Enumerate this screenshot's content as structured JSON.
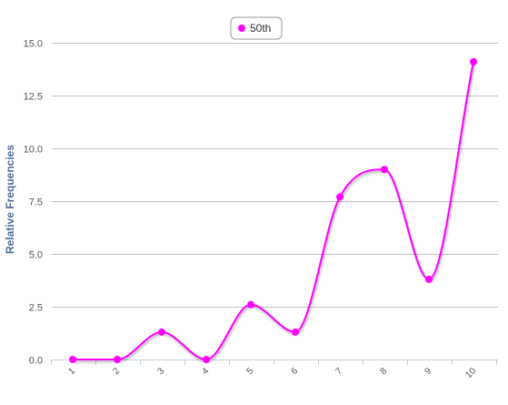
{
  "chart_data": {
    "type": "line",
    "smooth": true,
    "categories": [
      "1",
      "2",
      "3",
      "4",
      "5",
      "6",
      "7",
      "8",
      "9",
      "10"
    ],
    "series": [
      {
        "name": "50th",
        "color": "#ff00ff",
        "values": [
          0,
          0,
          1.3,
          0,
          2.6,
          1.3,
          7.7,
          9.0,
          3.8,
          14.1
        ]
      }
    ],
    "ylabel": "Relative Frequencies",
    "xlabel": "",
    "ylim": [
      0,
      15
    ],
    "yticks": [
      "0.0",
      "2.5",
      "5.0",
      "7.5",
      "10.0",
      "12.5",
      "15.0"
    ],
    "ytick_values": [
      0,
      2.5,
      5,
      7.5,
      10,
      12.5,
      15
    ],
    "grid": true,
    "legend_position": "top-center"
  }
}
